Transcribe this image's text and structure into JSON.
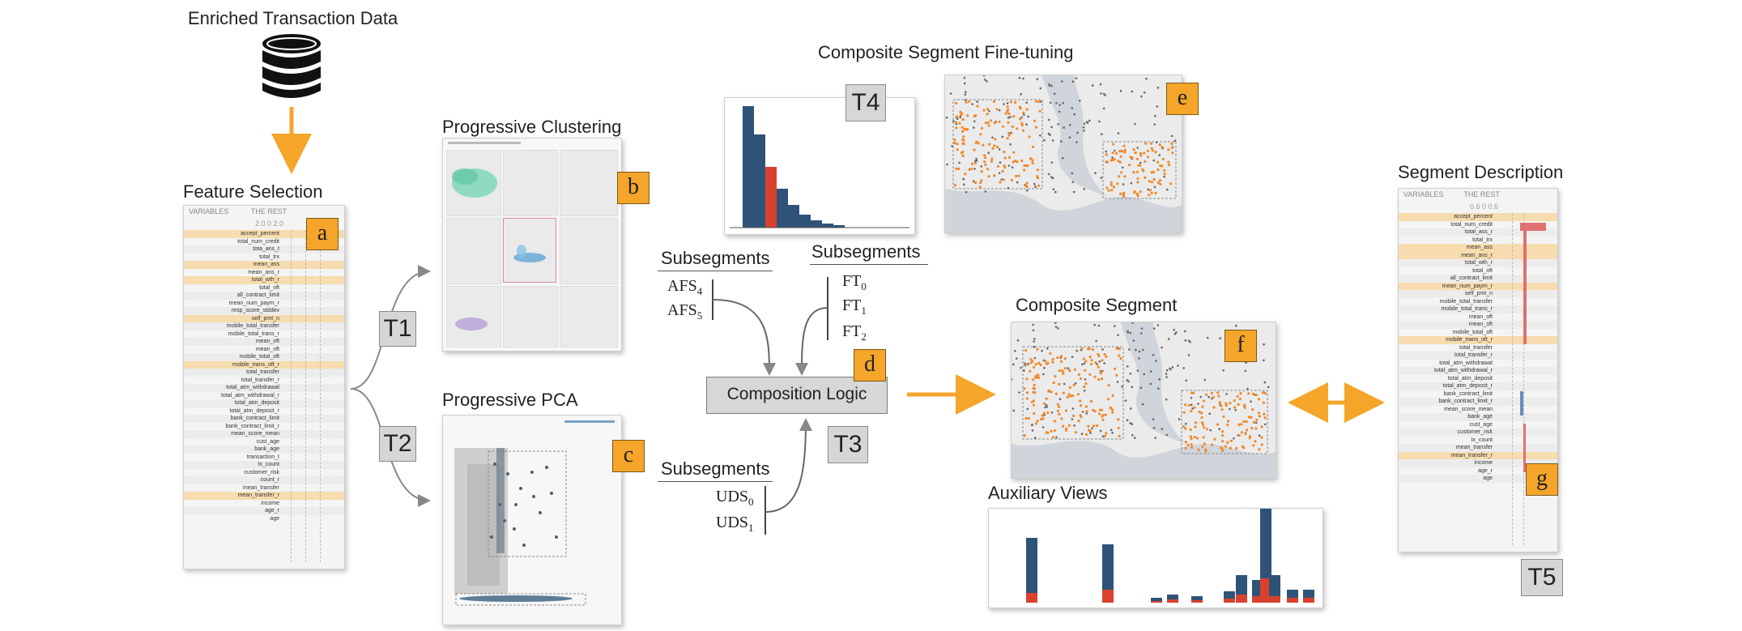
{
  "titles": {
    "enriched": "Enriched Transaction Data",
    "feature_selection": "Feature Selection",
    "progressive_clustering": "Progressive Clustering",
    "progressive_pca": "Progressive PCA",
    "composite_finetuning": "Composite Segment Fine-tuning",
    "composite_segment": "Composite Segment",
    "auxiliary_views": "Auxiliary Views",
    "segment_description": "Segment Description"
  },
  "badges": {
    "a": "a",
    "b": "b",
    "c": "c",
    "d": "d",
    "e": "e",
    "f": "f",
    "g": "g"
  },
  "tasks": {
    "t1": "T1",
    "t2": "T2",
    "t3": "T3",
    "t4": "T4",
    "t5": "T5"
  },
  "composition_logic": "Composition Logic",
  "subsegments_label": "Subsegments",
  "afs": [
    {
      "base": "AFS",
      "sub": "4"
    },
    {
      "base": "AFS",
      "sub": "5"
    }
  ],
  "ft": [
    {
      "base": "FT",
      "sub": "0"
    },
    {
      "base": "FT",
      "sub": "1"
    },
    {
      "base": "FT",
      "sub": "2"
    }
  ],
  "uds": [
    {
      "base": "UDS",
      "sub": "0"
    },
    {
      "base": "UDS",
      "sub": "1"
    }
  ],
  "feature_table": {
    "col1": "VARIABLES",
    "col2": "THE REST",
    "ticks": "2.0      0      2.0",
    "rows": [
      "accept_percent",
      "total_num_credit",
      "tota_ans_t",
      "total_trx",
      "mean_ass",
      "mean_ans_r",
      "total_wth_r",
      "total_oft",
      "all_contract_limit",
      "mean_num_paym_r",
      "resp_score_stddev",
      "self_pmt_n",
      "mobile_total_transfer",
      "mobile_total_trans_r",
      "mean_oft",
      "mean_oft",
      "mobile_total_oft",
      "mobile_trans_oft_r",
      "total_transfer",
      "total_transfer_r",
      "total_atm_withdrawal",
      "total_atm_withdrawal_r",
      "total_atm_deposit",
      "total_atm_deposit_r",
      "bank_contract_limit",
      "bank_contract_limit_r",
      "mean_score_mean",
      "cust_age",
      "bank_age",
      "transaction_t",
      "tx_count",
      "customer_risk",
      "count_r",
      "mean_transfer",
      "mean_transfer_r",
      "income",
      "age_r",
      "age"
    ],
    "highlight": [
      0,
      4,
      6,
      11,
      17,
      34
    ]
  },
  "desc_table": {
    "col1": "VARIABLES",
    "col2": "THE REST",
    "ticks": "0.6      0      0.6",
    "rows": [
      "accept_percent",
      "total_num_credit",
      "total_ass_r",
      "total_trx",
      "mean_ass",
      "mean_ans_r",
      "total_wth_r",
      "total_oft",
      "all_contract_limit",
      "mean_num_paym_r",
      "self_pmt_n",
      "mobile_total_transfer",
      "mobile_total_trans_r",
      "mean_oft",
      "mean_oft",
      "mobile_total_oft",
      "mobile_trans_oft_r",
      "total_transfer",
      "total_transfer_r",
      "total_atm_withdrawal",
      "total_atm_withdrawal_r",
      "total_atm_deposit",
      "total_atm_deposit_r",
      "bank_contract_limit",
      "bank_contract_limit_r",
      "mean_score_mean",
      "bank_age",
      "cust_age",
      "customer_risk",
      "tx_count",
      "mean_transfer",
      "mean_transfer_r",
      "income",
      "age_r",
      "age"
    ],
    "highlight": [
      0,
      4,
      5,
      9,
      16,
      31
    ]
  },
  "colors": {
    "accent": "#f5a52a",
    "blue": "#2f5378",
    "red": "#d9412e",
    "teal": "#7fd8b8",
    "orange_dot": "#f0892a"
  }
}
